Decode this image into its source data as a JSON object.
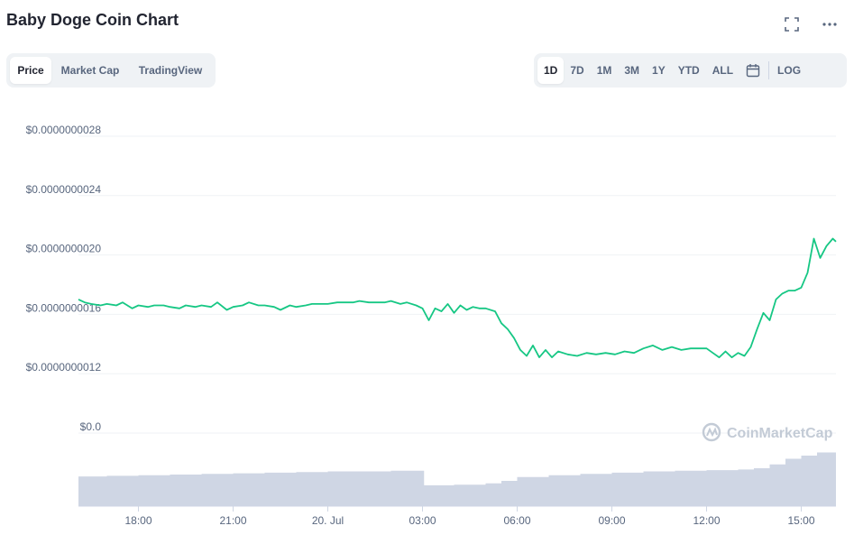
{
  "title": "Baby Doge Coin Chart",
  "tabs_left": [
    "Price",
    "Market Cap",
    "TradingView"
  ],
  "active_left": "Price",
  "tabs_right": [
    "1D",
    "7D",
    "1M",
    "3M",
    "1Y",
    "YTD",
    "ALL"
  ],
  "active_right": "1D",
  "log_label": "LOG",
  "watermark": "CoinMarketCap",
  "colors": {
    "line": "#16c784",
    "volume": "#cfd6e4",
    "grid": "#eff2f5",
    "accent_bg": "#eff2f5"
  },
  "icons": {
    "fullscreen": "fullscreen-icon",
    "more": "more-icon",
    "calendar": "calendar-icon",
    "watermark_logo": "coinmarketcap-logo-icon"
  },
  "chart_data": {
    "type": "line",
    "title": "",
    "ylabel": "",
    "xlabel": "",
    "y_tick_labels": [
      "$0.0000000028",
      "$0.0000000024",
      "$0.0000000020",
      "$0.0000000016",
      "$0.0000000012",
      "$0.0"
    ],
    "y_ticks": [
      2.8e-09,
      2.4e-09,
      2e-09,
      1.6e-09,
      1.2e-09,
      8e-10
    ],
    "ylim": [
      8e-10,
      2.8e-09
    ],
    "x_tick_labels": [
      "18:00",
      "21:00",
      "20. Jul",
      "03:00",
      "06:00",
      "09:00",
      "12:00",
      "15:00"
    ],
    "x_ticks_hours": [
      18,
      21,
      24,
      27,
      30,
      33,
      36,
      39
    ],
    "xlim_hours": [
      16.1,
      40.1
    ],
    "grid": true,
    "series": [
      {
        "x_hours": [
          16.1,
          16.3,
          16.5,
          16.8,
          17.0,
          17.3,
          17.5,
          17.8,
          18.0,
          18.3,
          18.5,
          18.8,
          19.0,
          19.3,
          19.5,
          19.8,
          20.0,
          20.3,
          20.5,
          20.8,
          21.0,
          21.3,
          21.5,
          21.8,
          22.0,
          22.3,
          22.5,
          22.8,
          23.0,
          23.3,
          23.5,
          23.8,
          24.0,
          24.3,
          24.5,
          24.8,
          25.0,
          25.3,
          25.5,
          25.8,
          26.0,
          26.3,
          26.5,
          26.8,
          27.0,
          27.2,
          27.4,
          27.6,
          27.8,
          28.0,
          28.2,
          28.4,
          28.6,
          28.8,
          29.0,
          29.3,
          29.5,
          29.7,
          29.9,
          30.1,
          30.3,
          30.5,
          30.7,
          30.9,
          31.1,
          31.3,
          31.6,
          31.9,
          32.2,
          32.5,
          32.8,
          33.1,
          33.4,
          33.7,
          34.0,
          34.3,
          34.6,
          34.9,
          35.2,
          35.5,
          35.8,
          36.0,
          36.2,
          36.4,
          36.6,
          36.8,
          37.0,
          37.2,
          37.4,
          37.6,
          37.8,
          38.0,
          38.2,
          38.4,
          38.6,
          38.8,
          39.0,
          39.2,
          39.4,
          39.6,
          39.8,
          40.0,
          40.1
        ],
        "values": [
          1.7e-09,
          1.68e-09,
          1.67e-09,
          1.66e-09,
          1.67e-09,
          1.66e-09,
          1.68e-09,
          1.64e-09,
          1.66e-09,
          1.65e-09,
          1.66e-09,
          1.66e-09,
          1.65e-09,
          1.64e-09,
          1.66e-09,
          1.65e-09,
          1.66e-09,
          1.65e-09,
          1.68e-09,
          1.63e-09,
          1.65e-09,
          1.66e-09,
          1.68e-09,
          1.66e-09,
          1.66e-09,
          1.65e-09,
          1.63e-09,
          1.66e-09,
          1.65e-09,
          1.66e-09,
          1.67e-09,
          1.67e-09,
          1.67e-09,
          1.68e-09,
          1.68e-09,
          1.68e-09,
          1.69e-09,
          1.68e-09,
          1.68e-09,
          1.68e-09,
          1.69e-09,
          1.67e-09,
          1.68e-09,
          1.66e-09,
          1.64e-09,
          1.56e-09,
          1.64e-09,
          1.62e-09,
          1.67e-09,
          1.61e-09,
          1.66e-09,
          1.63e-09,
          1.65e-09,
          1.64e-09,
          1.64e-09,
          1.62e-09,
          1.54e-09,
          1.5e-09,
          1.44e-09,
          1.36e-09,
          1.32e-09,
          1.39e-09,
          1.31e-09,
          1.36e-09,
          1.31e-09,
          1.35e-09,
          1.33e-09,
          1.32e-09,
          1.34e-09,
          1.33e-09,
          1.34e-09,
          1.33e-09,
          1.35e-09,
          1.34e-09,
          1.37e-09,
          1.39e-09,
          1.36e-09,
          1.38e-09,
          1.36e-09,
          1.37e-09,
          1.37e-09,
          1.37e-09,
          1.34e-09,
          1.31e-09,
          1.35e-09,
          1.31e-09,
          1.34e-09,
          1.32e-09,
          1.38e-09,
          1.5e-09,
          1.61e-09,
          1.56e-09,
          1.7e-09,
          1.74e-09,
          1.76e-09,
          1.76e-09,
          1.78e-09,
          1.88e-09,
          2.11e-09,
          1.98e-09,
          2.06e-09,
          2.11e-09,
          2.09e-09
        ]
      }
    ],
    "volume": {
      "x_hours": [
        16.1,
        17.0,
        18.0,
        19.0,
        20.0,
        21.0,
        22.0,
        23.0,
        24.0,
        25.0,
        26.0,
        27.0,
        27.05,
        28.0,
        29.0,
        29.5,
        30.0,
        31.0,
        32.0,
        33.0,
        34.0,
        35.0,
        36.0,
        37.0,
        37.5,
        38.0,
        38.5,
        39.0,
        39.5,
        40.1
      ],
      "levels": [
        0.47,
        0.48,
        0.49,
        0.5,
        0.51,
        0.52,
        0.53,
        0.54,
        0.55,
        0.55,
        0.56,
        0.56,
        0.33,
        0.34,
        0.36,
        0.4,
        0.46,
        0.49,
        0.51,
        0.53,
        0.55,
        0.56,
        0.57,
        0.58,
        0.6,
        0.66,
        0.75,
        0.8,
        0.85,
        0.9
      ]
    }
  }
}
